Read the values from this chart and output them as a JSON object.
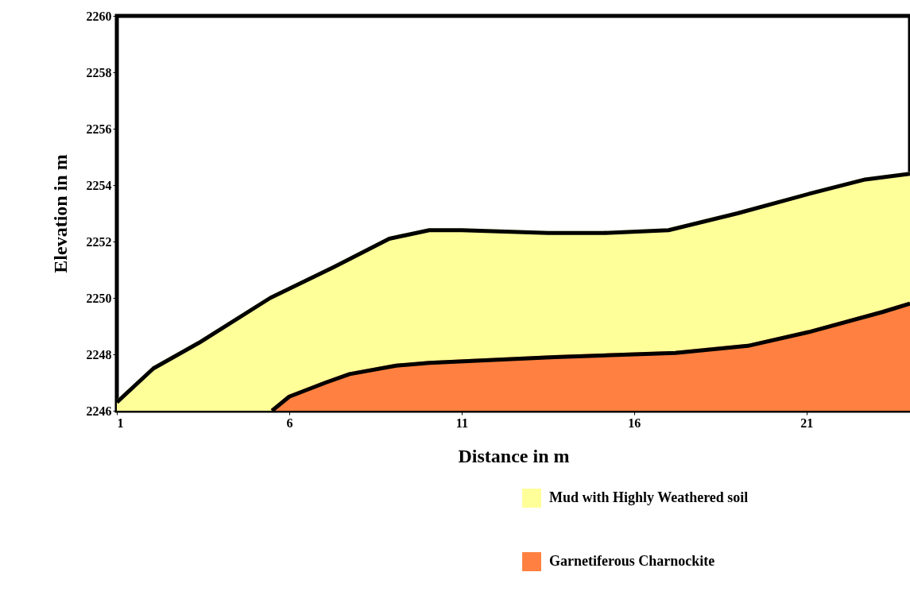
{
  "chart_data": {
    "type": "area",
    "xlabel": "Distance in m",
    "ylabel": "Elevation in m",
    "xlim": [
      1,
      24
    ],
    "xticks": [
      1,
      6,
      11,
      16,
      21
    ],
    "ylim": [
      2246,
      2260
    ],
    "yticks": [
      2246,
      2248,
      2250,
      2252,
      2254,
      2256,
      2258,
      2260
    ],
    "grid": false,
    "legend": "bottom right",
    "series": [
      {
        "name": "Mud with Highly Weathered soil",
        "color": "#ffff99",
        "x": [
          1,
          2.06,
          3.37,
          5.45,
          7.3,
          8.9,
          10.06,
          11,
          13.5,
          15.1,
          17,
          19,
          21.1,
          22.7,
          24
        ],
        "values": [
          2246.3,
          2247.5,
          2248.4,
          2250,
          2251.1,
          2252.1,
          2252.4,
          2252.4,
          2252.3,
          2252.3,
          2252.4,
          2253,
          2253.7,
          2254.2,
          2254.4
        ]
      },
      {
        "name": "Garnetiferous Charnockite",
        "color": "#ff8040",
        "x": [
          5.5,
          6,
          7.06,
          7.75,
          9.1,
          10.06,
          13.7,
          17.2,
          19.3,
          21.1,
          23.2,
          24
        ],
        "values": [
          2246,
          2246.5,
          2247,
          2247.3,
          2247.6,
          2247.7,
          2247.9,
          2248.05,
          2248.3,
          2248.8,
          2249.5,
          2249.8
        ]
      }
    ]
  }
}
